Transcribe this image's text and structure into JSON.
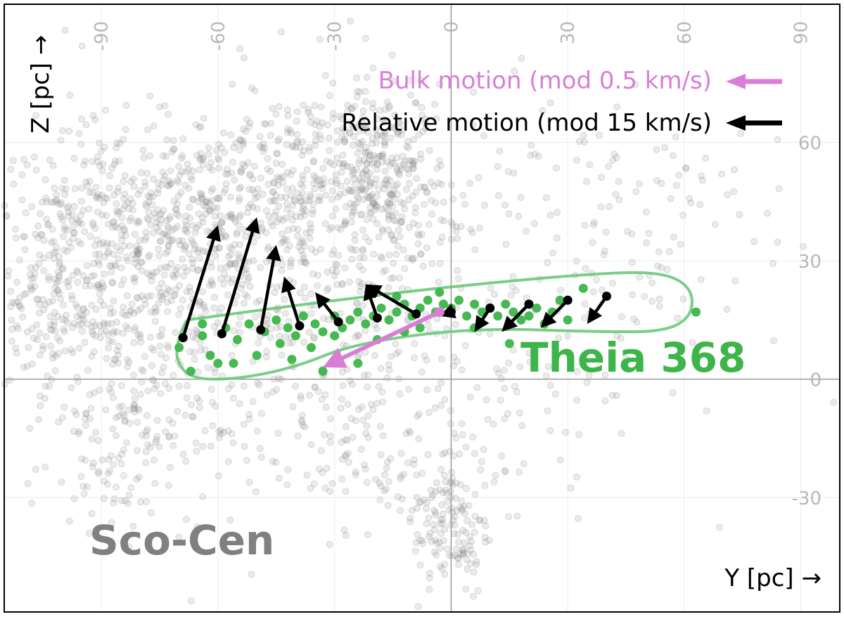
{
  "chart_data": {
    "type": "scatter",
    "xlabel": "Y [pc] →",
    "ylabel": "Z [pc] →",
    "xlim": [
      -115,
      100
    ],
    "ylim": [
      -59,
      95
    ],
    "x_ticks": [
      -90,
      -60,
      -30,
      0,
      30,
      60,
      90
    ],
    "y_ticks": [
      -30,
      0,
      30,
      60
    ],
    "grid": true,
    "labels": {
      "group_1": "Sco-Cen",
      "group_2": "Theia 368"
    },
    "legend": {
      "placement": "top-right",
      "entries": [
        {
          "label": "Bulk motion (mod 0.5 km/s)",
          "color": "#d97ed6"
        },
        {
          "label": "Relative motion (mod 15 km/s)",
          "color": "#000000"
        }
      ]
    },
    "colors": {
      "background_points": "#808080",
      "theia": "#3db54a",
      "bulk_arrow": "#d97ed6",
      "relative_arrow": "#000000",
      "grid": "#ececec",
      "zero_axis": "#999999",
      "tick_label": "#b8b8b8"
    },
    "background_clusters": [
      {
        "cx": -88,
        "cy": 32,
        "sx": 16,
        "sy": 16,
        "n": 420
      },
      {
        "cx": -62,
        "cy": 38,
        "sx": 18,
        "sy": 15,
        "n": 420
      },
      {
        "cx": -18,
        "cy": 50,
        "sx": 9,
        "sy": 12,
        "n": 320
      },
      {
        "cx": -38,
        "cy": 50,
        "sx": 14,
        "sy": 14,
        "n": 200
      },
      {
        "cx": -85,
        "cy": -10,
        "sx": 9,
        "sy": 14,
        "n": 170
      },
      {
        "cx": -105,
        "cy": 20,
        "sx": 6,
        "sy": 15,
        "n": 110
      },
      {
        "cx": 0,
        "cy": -38,
        "sx": 5,
        "sy": 9,
        "n": 130
      },
      {
        "cx": -30,
        "cy": 10,
        "sx": 35,
        "sy": 22,
        "n": 350
      },
      {
        "cx": 35,
        "cy": 40,
        "sx": 28,
        "sy": 18,
        "n": 160
      },
      {
        "cx": -20,
        "cy": -15,
        "sx": 22,
        "sy": 12,
        "n": 150
      }
    ],
    "theia_points": [
      [
        -70,
        8
      ],
      [
        -67,
        2
      ],
      [
        -64,
        11
      ],
      [
        -62,
        6
      ],
      [
        -58,
        13
      ],
      [
        -55,
        10
      ],
      [
        -52,
        14
      ],
      [
        -48,
        12
      ],
      [
        -45,
        15
      ],
      [
        -42,
        13
      ],
      [
        -40,
        11
      ],
      [
        -38,
        16
      ],
      [
        -35,
        14
      ],
      [
        -33,
        12
      ],
      [
        -30,
        16
      ],
      [
        -28,
        13
      ],
      [
        -26,
        15
      ],
      [
        -24,
        17
      ],
      [
        -22,
        14
      ],
      [
        -20,
        16
      ],
      [
        -18,
        18
      ],
      [
        -16,
        15
      ],
      [
        -14,
        17
      ],
      [
        -12,
        19
      ],
      [
        -10,
        16
      ],
      [
        -8,
        18
      ],
      [
        -6,
        20
      ],
      [
        -4,
        17
      ],
      [
        -2,
        19
      ],
      [
        0,
        18
      ],
      [
        2,
        20
      ],
      [
        4,
        16
      ],
      [
        6,
        19
      ],
      [
        8,
        17
      ],
      [
        10,
        18
      ],
      [
        12,
        16
      ],
      [
        14,
        19
      ],
      [
        16,
        17
      ],
      [
        18,
        15
      ],
      [
        20,
        16
      ],
      [
        22,
        18
      ],
      [
        24,
        14
      ],
      [
        26,
        17
      ],
      [
        28,
        20
      ],
      [
        30,
        15
      ],
      [
        34,
        23
      ],
      [
        63,
        17
      ],
      [
        -33,
        2
      ],
      [
        -24,
        4
      ],
      [
        -12,
        12
      ],
      [
        -50,
        6
      ],
      [
        -44,
        9
      ],
      [
        -60,
        4
      ],
      [
        -36,
        8
      ],
      [
        -8,
        13
      ],
      [
        6,
        13
      ],
      [
        15,
        9
      ],
      [
        -3,
        22
      ],
      [
        -14,
        21
      ],
      [
        -56,
        4
      ],
      [
        -41,
        5
      ],
      [
        -19,
        10
      ],
      [
        -30,
        11
      ],
      [
        -64,
        14
      ]
    ],
    "theia_outline": [
      [
        -68,
        15
      ],
      [
        -30,
        20
      ],
      [
        5,
        24
      ],
      [
        40,
        27
      ],
      [
        55,
        27
      ],
      [
        62,
        23
      ],
      [
        62,
        16
      ],
      [
        55,
        12
      ],
      [
        38,
        12
      ],
      [
        5,
        13
      ],
      [
        -25,
        9
      ],
      [
        -40,
        3
      ],
      [
        -55,
        0
      ],
      [
        -67,
        0
      ],
      [
        -71,
        5
      ],
      [
        -70,
        11
      ],
      [
        -68,
        15
      ]
    ],
    "relative_motion": [
      {
        "x0": -69,
        "y0": 10.5,
        "x1": -60,
        "y1": 39
      },
      {
        "x0": -59,
        "y0": 11.5,
        "x1": -50,
        "y1": 41
      },
      {
        "x0": -49,
        "y0": 12.5,
        "x1": -45,
        "y1": 34
      },
      {
        "x0": -39,
        "y0": 13.5,
        "x1": -43,
        "y1": 26
      },
      {
        "x0": -29,
        "y0": 14.5,
        "x1": -35,
        "y1": 22
      },
      {
        "x0": -19,
        "y0": 15.5,
        "x1": -22,
        "y1": 24
      },
      {
        "x0": -9,
        "y0": 16.5,
        "x1": -22,
        "y1": 24
      },
      {
        "x0": 0,
        "y0": 17,
        "x1": -3,
        "y1": 16
      },
      {
        "x0": 10,
        "y0": 18,
        "x1": 6,
        "y1": 12
      },
      {
        "x0": 20,
        "y0": 19,
        "x1": 13,
        "y1": 12
      },
      {
        "x0": 30,
        "y0": 20,
        "x1": 23,
        "y1": 13
      },
      {
        "x0": 40,
        "y0": 21,
        "x1": 35,
        "y1": 14
      }
    ],
    "bulk_motion": {
      "x0": -3,
      "y0": 17,
      "x1": -33,
      "y1": 3
    }
  }
}
